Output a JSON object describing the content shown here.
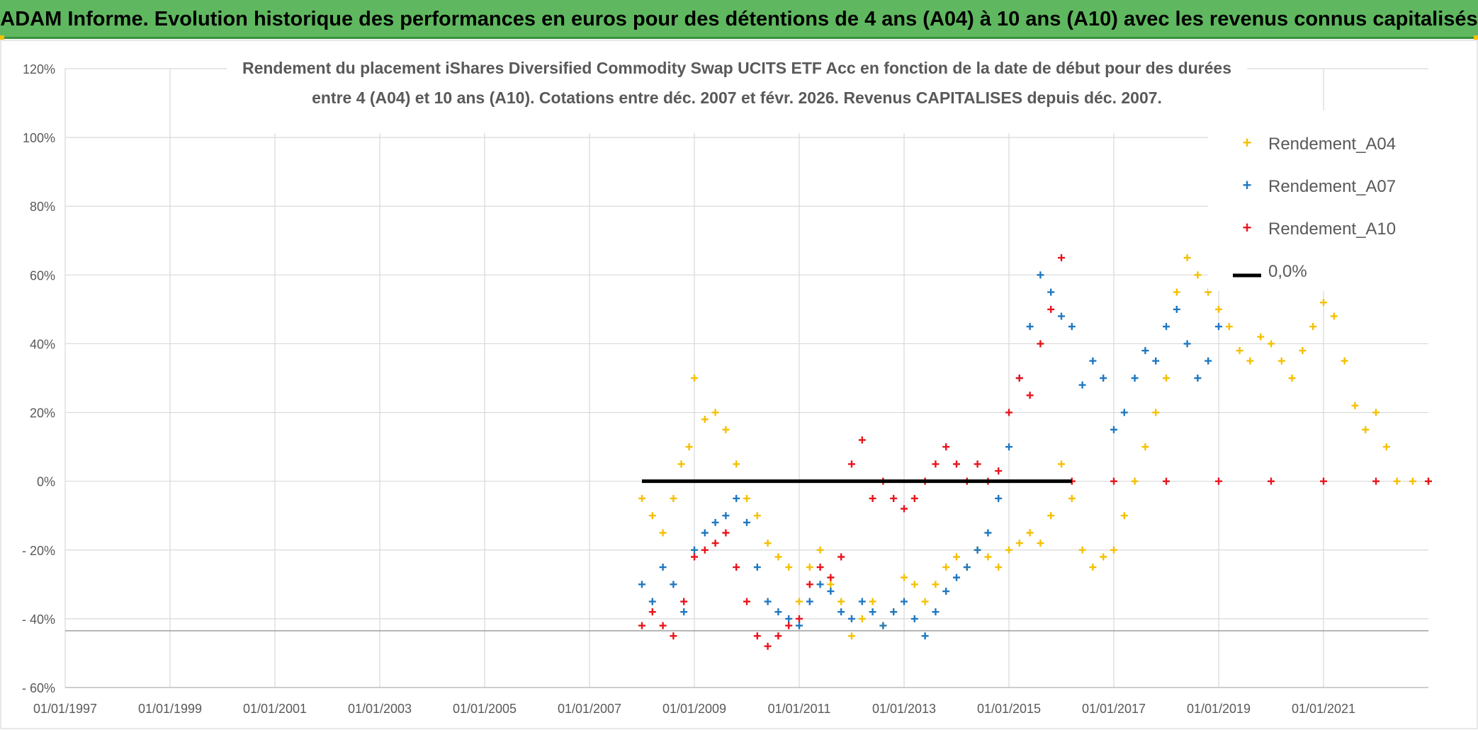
{
  "banner": {
    "title": "ADAM Informe. Evolution historique des performances en euros pour des détentions de 4 ans (A04) à 10 ans (A10) avec les revenus connus capitalisés"
  },
  "colors": {
    "A04": "#f5c000",
    "A07": "#1f78c1",
    "A10": "#e8141c",
    "zero": "#000000",
    "grid": "#d9d9d9",
    "banner": "#5fb85f"
  },
  "chart_data": {
    "type": "scatter",
    "title_line1": "Rendement du placement iShares Diversified Commodity Swap UCITS ETF Acc en fonction de la date de début pour des durées",
    "title_line2": "entre 4 (A04) et 10 ans (A10). Cotations entre déc. 2007 et févr. 2026. Revenus CAPITALISES depuis déc. 2007.",
    "xlim": [
      1997.0,
      2023.0
    ],
    "ylim": [
      -60,
      120
    ],
    "x_ticks": [
      1997,
      1999,
      2001,
      2003,
      2005,
      2007,
      2009,
      2011,
      2013,
      2015,
      2017,
      2019,
      2021
    ],
    "x_tick_labels": [
      "01/01/1997",
      "01/01/1999",
      "01/01/2001",
      "01/01/2003",
      "01/01/2005",
      "01/01/2007",
      "01/01/2009",
      "01/01/2011",
      "01/01/2013",
      "01/01/2015",
      "01/01/2017",
      "01/01/2019",
      "01/01/2021"
    ],
    "y_ticks": [
      -60,
      -40,
      -20,
      0,
      20,
      40,
      60,
      80,
      100,
      120
    ],
    "y_tick_labels": [
      "- 60%",
      "- 40%",
      "- 20%",
      "0%",
      "20%",
      "40%",
      "60%",
      "80%",
      "100%",
      "120%"
    ],
    "legend_position": "top-right",
    "series": [
      {
        "name": "Rendement_A04",
        "marker": "+",
        "color": "#f5c000",
        "points": [
          [
            2008.0,
            -5
          ],
          [
            2008.2,
            -10
          ],
          [
            2008.4,
            -15
          ],
          [
            2008.6,
            -5
          ],
          [
            2008.75,
            5
          ],
          [
            2008.9,
            10
          ],
          [
            2009.0,
            30
          ],
          [
            2009.2,
            18
          ],
          [
            2009.4,
            20
          ],
          [
            2009.6,
            15
          ],
          [
            2009.8,
            5
          ],
          [
            2010.0,
            -5
          ],
          [
            2010.2,
            -10
          ],
          [
            2010.4,
            -18
          ],
          [
            2010.6,
            -22
          ],
          [
            2010.8,
            -25
          ],
          [
            2011.0,
            -35
          ],
          [
            2011.2,
            -25
          ],
          [
            2011.4,
            -20
          ],
          [
            2011.6,
            -30
          ],
          [
            2011.8,
            -35
          ],
          [
            2012.0,
            -45
          ],
          [
            2012.2,
            -40
          ],
          [
            2012.4,
            -35
          ],
          [
            2012.6,
            -42
          ],
          [
            2012.8,
            -38
          ],
          [
            2013.0,
            -28
          ],
          [
            2013.2,
            -30
          ],
          [
            2013.4,
            -35
          ],
          [
            2013.6,
            -30
          ],
          [
            2013.8,
            -25
          ],
          [
            2014.0,
            -22
          ],
          [
            2014.2,
            -25
          ],
          [
            2014.4,
            -20
          ],
          [
            2014.6,
            -22
          ],
          [
            2014.8,
            -25
          ],
          [
            2015.0,
            -20
          ],
          [
            2015.2,
            -18
          ],
          [
            2015.4,
            -15
          ],
          [
            2015.6,
            -18
          ],
          [
            2015.8,
            -10
          ],
          [
            2016.0,
            5
          ],
          [
            2016.2,
            -5
          ],
          [
            2016.4,
            -20
          ],
          [
            2016.6,
            -25
          ],
          [
            2016.8,
            -22
          ],
          [
            2017.0,
            -20
          ],
          [
            2017.2,
            -10
          ],
          [
            2017.4,
            0
          ],
          [
            2017.6,
            10
          ],
          [
            2017.8,
            20
          ],
          [
            2018.0,
            30
          ],
          [
            2018.2,
            55
          ],
          [
            2018.4,
            65
          ],
          [
            2018.6,
            60
          ],
          [
            2018.8,
            55
          ],
          [
            2019.0,
            50
          ],
          [
            2019.2,
            45
          ],
          [
            2019.4,
            38
          ],
          [
            2019.6,
            35
          ],
          [
            2019.8,
            42
          ],
          [
            2020.0,
            40
          ],
          [
            2020.2,
            35
          ],
          [
            2020.4,
            30
          ],
          [
            2020.6,
            38
          ],
          [
            2020.8,
            45
          ],
          [
            2021.0,
            52
          ],
          [
            2021.2,
            48
          ],
          [
            2021.4,
            35
          ],
          [
            2021.6,
            22
          ],
          [
            2021.8,
            15
          ],
          [
            2022.0,
            20
          ],
          [
            2022.2,
            10
          ],
          [
            2022.4,
            0
          ],
          [
            2022.7,
            0
          ],
          [
            2023.0,
            0
          ]
        ]
      },
      {
        "name": "Rendement_A07",
        "marker": "+",
        "color": "#1f78c1",
        "points": [
          [
            2008.0,
            -30
          ],
          [
            2008.2,
            -35
          ],
          [
            2008.4,
            -25
          ],
          [
            2008.6,
            -30
          ],
          [
            2008.8,
            -38
          ],
          [
            2009.0,
            -20
          ],
          [
            2009.2,
            -15
          ],
          [
            2009.4,
            -12
          ],
          [
            2009.6,
            -10
          ],
          [
            2009.8,
            -5
          ],
          [
            2010.0,
            -12
          ],
          [
            2010.2,
            -25
          ],
          [
            2010.4,
            -35
          ],
          [
            2010.6,
            -38
          ],
          [
            2010.8,
            -40
          ],
          [
            2011.0,
            -42
          ],
          [
            2011.2,
            -35
          ],
          [
            2011.4,
            -30
          ],
          [
            2011.6,
            -32
          ],
          [
            2011.8,
            -38
          ],
          [
            2012.0,
            -40
          ],
          [
            2012.2,
            -35
          ],
          [
            2012.4,
            -38
          ],
          [
            2012.6,
            -42
          ],
          [
            2012.8,
            -38
          ],
          [
            2013.0,
            -35
          ],
          [
            2013.2,
            -40
          ],
          [
            2013.4,
            -45
          ],
          [
            2013.6,
            -38
          ],
          [
            2013.8,
            -32
          ],
          [
            2014.0,
            -28
          ],
          [
            2014.2,
            -25
          ],
          [
            2014.4,
            -20
          ],
          [
            2014.6,
            -15
          ],
          [
            2014.8,
            -5
          ],
          [
            2015.0,
            10
          ],
          [
            2015.2,
            30
          ],
          [
            2015.4,
            45
          ],
          [
            2015.6,
            60
          ],
          [
            2015.8,
            55
          ],
          [
            2016.0,
            48
          ],
          [
            2016.2,
            45
          ],
          [
            2016.4,
            28
          ],
          [
            2016.6,
            35
          ],
          [
            2016.8,
            30
          ],
          [
            2017.0,
            15
          ],
          [
            2017.2,
            20
          ],
          [
            2017.4,
            30
          ],
          [
            2017.6,
            38
          ],
          [
            2017.8,
            35
          ],
          [
            2018.0,
            45
          ],
          [
            2018.2,
            50
          ],
          [
            2018.4,
            40
          ],
          [
            2018.6,
            30
          ],
          [
            2018.8,
            35
          ],
          [
            2019.0,
            45
          ]
        ]
      },
      {
        "name": "Rendement_A10",
        "marker": "+",
        "color": "#e8141c",
        "points": [
          [
            2008.0,
            -42
          ],
          [
            2008.2,
            -38
          ],
          [
            2008.4,
            -42
          ],
          [
            2008.6,
            -45
          ],
          [
            2008.8,
            -35
          ],
          [
            2009.0,
            -22
          ],
          [
            2009.2,
            -20
          ],
          [
            2009.4,
            -18
          ],
          [
            2009.6,
            -15
          ],
          [
            2009.8,
            -25
          ],
          [
            2010.0,
            -35
          ],
          [
            2010.2,
            -45
          ],
          [
            2010.4,
            -48
          ],
          [
            2010.6,
            -45
          ],
          [
            2010.8,
            -42
          ],
          [
            2011.0,
            -40
          ],
          [
            2011.2,
            -30
          ],
          [
            2011.4,
            -25
          ],
          [
            2011.6,
            -28
          ],
          [
            2011.8,
            -22
          ],
          [
            2012.0,
            5
          ],
          [
            2012.2,
            12
          ],
          [
            2012.4,
            -5
          ],
          [
            2012.6,
            0
          ],
          [
            2012.8,
            -5
          ],
          [
            2013.0,
            -8
          ],
          [
            2013.2,
            -5
          ],
          [
            2013.4,
            0
          ],
          [
            2013.6,
            5
          ],
          [
            2013.8,
            10
          ],
          [
            2014.0,
            5
          ],
          [
            2014.2,
            0
          ],
          [
            2014.4,
            5
          ],
          [
            2014.6,
            0
          ],
          [
            2014.8,
            3
          ],
          [
            2015.0,
            20
          ],
          [
            2015.2,
            30
          ],
          [
            2015.4,
            25
          ],
          [
            2015.6,
            40
          ],
          [
            2015.8,
            50
          ],
          [
            2016.0,
            65
          ],
          [
            2016.2,
            0
          ],
          [
            2017.0,
            0
          ],
          [
            2018.0,
            0
          ],
          [
            2019.0,
            0
          ],
          [
            2020.0,
            0
          ],
          [
            2021.0,
            0
          ],
          [
            2022.0,
            0
          ],
          [
            2023.0,
            0
          ]
        ]
      },
      {
        "name": "0,0%",
        "marker": "line",
        "color": "#000000",
        "points": [
          [
            2008.0,
            0
          ],
          [
            2016.2,
            0
          ]
        ]
      }
    ]
  }
}
